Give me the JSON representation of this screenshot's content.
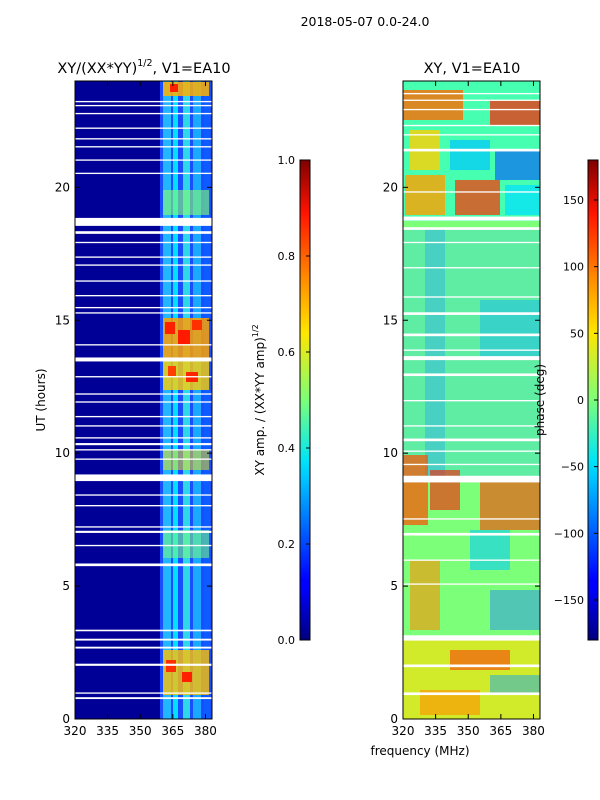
{
  "figure": {
    "suptitle": "2018-05-07 0.0-24.0",
    "xlabel": "frequency (MHz)",
    "colors": {
      "background": "#ffffff",
      "gap": "#ffffff",
      "axis": "#000000"
    }
  },
  "chart_data": [
    {
      "type": "heatmap",
      "title_main": "XY/(XX*YY)",
      "title_sup": "1/2",
      "title_rest": ", V1=EA10",
      "ylabel": "UT (hours)",
      "xlim": [
        320,
        383
      ],
      "ylim": [
        0,
        24
      ],
      "xticks": [
        320,
        335,
        350,
        365,
        380
      ],
      "yticks": [
        0,
        5,
        10,
        15,
        20
      ],
      "x_tick_labels": [
        "320",
        "335",
        "350",
        "365",
        "380"
      ],
      "y_tick_labels": [
        "0",
        "5",
        "10",
        "15",
        "20"
      ],
      "colorbar": {
        "range": [
          0.0,
          1.0
        ],
        "ticks": [
          0.0,
          0.2,
          0.4,
          0.6,
          0.8,
          1.0
        ],
        "tick_labels": [
          "0.0",
          "0.2",
          "0.4",
          "0.6",
          "0.8",
          "1.0"
        ],
        "label_main": "XY amp. / (XX*YY amp)",
        "label_sup": "1/2"
      },
      "gap_bands_hours": [
        [
          0.75,
          0.82
        ],
        [
          0.95,
          1.0
        ],
        [
          2.0,
          2.08
        ],
        [
          2.65,
          2.72
        ],
        [
          2.95,
          3.02
        ],
        [
          3.3,
          3.36
        ],
        [
          5.75,
          5.85
        ],
        [
          6.5,
          6.55
        ],
        [
          7.0,
          7.08
        ],
        [
          7.2,
          7.25
        ],
        [
          8.0,
          8.05
        ],
        [
          8.4,
          8.45
        ],
        [
          8.95,
          9.2
        ],
        [
          9.75,
          9.8
        ],
        [
          10.1,
          10.15
        ],
        [
          10.3,
          10.38
        ],
        [
          10.55,
          10.6
        ],
        [
          11.0,
          11.05
        ],
        [
          11.35,
          11.4
        ],
        [
          11.9,
          11.95
        ],
        [
          12.2,
          12.25
        ],
        [
          12.85,
          12.9
        ],
        [
          13.45,
          13.6
        ],
        [
          14.05,
          14.1
        ],
        [
          15.25,
          15.3
        ],
        [
          15.45,
          15.5
        ],
        [
          15.9,
          15.95
        ],
        [
          16.45,
          16.5
        ],
        [
          17.05,
          17.1
        ],
        [
          17.35,
          17.4
        ],
        [
          17.9,
          17.95
        ],
        [
          18.25,
          18.35
        ],
        [
          18.55,
          18.85
        ],
        [
          20.5,
          20.55
        ],
        [
          21.0,
          21.05
        ],
        [
          21.5,
          21.55
        ],
        [
          21.8,
          21.85
        ],
        [
          22.2,
          22.25
        ],
        [
          22.75,
          22.8
        ],
        [
          23.05,
          23.1
        ],
        [
          23.2,
          23.25
        ]
      ]
    },
    {
      "type": "heatmap",
      "title_main": "XY, V1=EA10",
      "xlim": [
        320,
        383
      ],
      "ylim": [
        0,
        24
      ],
      "xticks": [
        320,
        335,
        350,
        365,
        380
      ],
      "yticks": [
        0,
        5,
        10,
        15,
        20
      ],
      "x_tick_labels": [
        "320",
        "335",
        "350",
        "365",
        "380"
      ],
      "y_tick_labels": [
        "0",
        "5",
        "10",
        "15",
        "20"
      ],
      "colorbar": {
        "range": [
          -180,
          180
        ],
        "ticks": [
          -150,
          -100,
          -50,
          0,
          50,
          100,
          150
        ],
        "tick_labels": [
          "−150",
          "−100",
          "−50",
          "0",
          "50",
          "100",
          "150"
        ],
        "label_main": "phase (deg)"
      },
      "gap_bands_hours": [
        [
          0.9,
          1.0
        ],
        [
          1.95,
          2.05
        ],
        [
          2.95,
          3.15
        ],
        [
          5.05,
          5.1
        ],
        [
          5.95,
          6.0
        ],
        [
          6.9,
          7.0
        ],
        [
          7.5,
          7.55
        ],
        [
          8.9,
          9.15
        ],
        [
          9.55,
          9.6
        ],
        [
          10.05,
          10.1
        ],
        [
          10.45,
          10.55
        ],
        [
          11.0,
          11.05
        ],
        [
          11.95,
          12.0
        ],
        [
          12.9,
          13.0
        ],
        [
          13.5,
          13.65
        ],
        [
          13.85,
          13.9
        ],
        [
          14.4,
          14.5
        ],
        [
          15.2,
          15.3
        ],
        [
          15.85,
          15.9
        ],
        [
          16.95,
          17.0
        ],
        [
          17.9,
          17.95
        ],
        [
          18.4,
          18.5
        ],
        [
          18.75,
          18.9
        ],
        [
          19.8,
          19.85
        ],
        [
          21.35,
          21.45
        ],
        [
          21.95,
          22.0
        ],
        [
          22.3,
          22.35
        ],
        [
          22.9,
          22.95
        ],
        [
          23.25,
          23.3
        ],
        [
          23.5,
          23.55
        ]
      ]
    }
  ]
}
